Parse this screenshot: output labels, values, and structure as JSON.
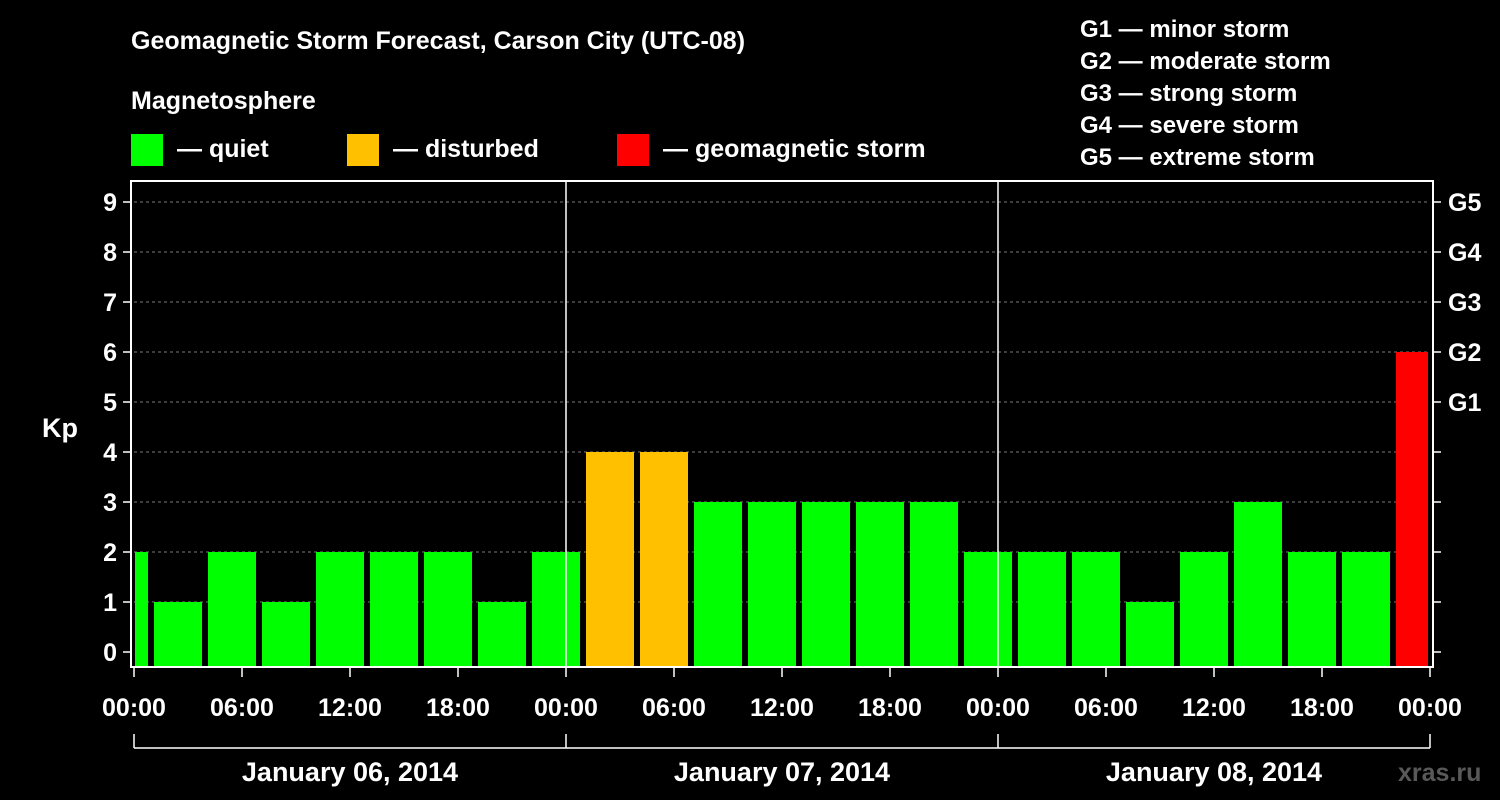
{
  "header": {
    "title": "Geomagnetic Storm Forecast, Carson City (UTC-08)",
    "subtitle": "Magnetosphere",
    "watermark": "xras.ru"
  },
  "legend": {
    "items": [
      {
        "label": "— quiet",
        "color": "#00ff00"
      },
      {
        "label": "— disturbed",
        "color": "#ffc000"
      },
      {
        "label": "— geomagnetic storm",
        "color": "#ff0000"
      }
    ],
    "storm_scale": [
      "G1 — minor storm",
      "G2 — moderate storm",
      "G3 — strong storm",
      "G4 — severe storm",
      "G5 — extreme storm"
    ]
  },
  "chart_data": {
    "type": "bar",
    "ylabel": "Kp",
    "ylim": [
      0,
      9
    ],
    "y_ticks": [
      "0",
      "1",
      "2",
      "3",
      "4",
      "5",
      "6",
      "7",
      "8",
      "9"
    ],
    "g_ticks": [
      {
        "kp": 5,
        "label": "G1"
      },
      {
        "kp": 6,
        "label": "G2"
      },
      {
        "kp": 7,
        "label": "G3"
      },
      {
        "kp": 8,
        "label": "G4"
      },
      {
        "kp": 9,
        "label": "G5"
      }
    ],
    "x_ticks": [
      "00:00",
      "06:00",
      "12:00",
      "18:00",
      "00:00",
      "06:00",
      "12:00",
      "18:00",
      "00:00",
      "06:00",
      "12:00",
      "18:00",
      "00:00"
    ],
    "days": [
      "January 06, 2014",
      "January 07, 2014",
      "January 08, 2014"
    ],
    "grid": "dashed horizontal at each Kp level",
    "colors": {
      "quiet": "#00ff00",
      "disturbed": "#ffc000",
      "storm": "#ff0000"
    },
    "bars": [
      {
        "start_hour": 0,
        "end_hour": 1,
        "kp": 2,
        "level": "quiet"
      },
      {
        "start_hour": 1,
        "end_hour": 4,
        "kp": 1,
        "level": "quiet"
      },
      {
        "start_hour": 4,
        "end_hour": 7,
        "kp": 2,
        "level": "quiet"
      },
      {
        "start_hour": 7,
        "end_hour": 10,
        "kp": 1,
        "level": "quiet"
      },
      {
        "start_hour": 10,
        "end_hour": 13,
        "kp": 2,
        "level": "quiet"
      },
      {
        "start_hour": 13,
        "end_hour": 16,
        "kp": 2,
        "level": "quiet"
      },
      {
        "start_hour": 16,
        "end_hour": 19,
        "kp": 2,
        "level": "quiet"
      },
      {
        "start_hour": 19,
        "end_hour": 22,
        "kp": 1,
        "level": "quiet"
      },
      {
        "start_hour": 22,
        "end_hour": 25,
        "kp": 2,
        "level": "quiet"
      },
      {
        "start_hour": 25,
        "end_hour": 28,
        "kp": 4,
        "level": "disturbed"
      },
      {
        "start_hour": 28,
        "end_hour": 31,
        "kp": 4,
        "level": "disturbed"
      },
      {
        "start_hour": 31,
        "end_hour": 34,
        "kp": 3,
        "level": "quiet"
      },
      {
        "start_hour": 34,
        "end_hour": 37,
        "kp": 3,
        "level": "quiet"
      },
      {
        "start_hour": 37,
        "end_hour": 40,
        "kp": 3,
        "level": "quiet"
      },
      {
        "start_hour": 40,
        "end_hour": 43,
        "kp": 3,
        "level": "quiet"
      },
      {
        "start_hour": 43,
        "end_hour": 46,
        "kp": 3,
        "level": "quiet"
      },
      {
        "start_hour": 46,
        "end_hour": 49,
        "kp": 2,
        "level": "quiet"
      },
      {
        "start_hour": 49,
        "end_hour": 52,
        "kp": 2,
        "level": "quiet"
      },
      {
        "start_hour": 52,
        "end_hour": 55,
        "kp": 2,
        "level": "quiet"
      },
      {
        "start_hour": 55,
        "end_hour": 58,
        "kp": 1,
        "level": "quiet"
      },
      {
        "start_hour": 58,
        "end_hour": 61,
        "kp": 2,
        "level": "quiet"
      },
      {
        "start_hour": 61,
        "end_hour": 64,
        "kp": 3,
        "level": "quiet"
      },
      {
        "start_hour": 64,
        "end_hour": 67,
        "kp": 2,
        "level": "quiet"
      },
      {
        "start_hour": 67,
        "end_hour": 70,
        "kp": 2,
        "level": "quiet"
      },
      {
        "start_hour": 70,
        "end_hour": 72,
        "kp": 6,
        "level": "storm"
      }
    ]
  }
}
